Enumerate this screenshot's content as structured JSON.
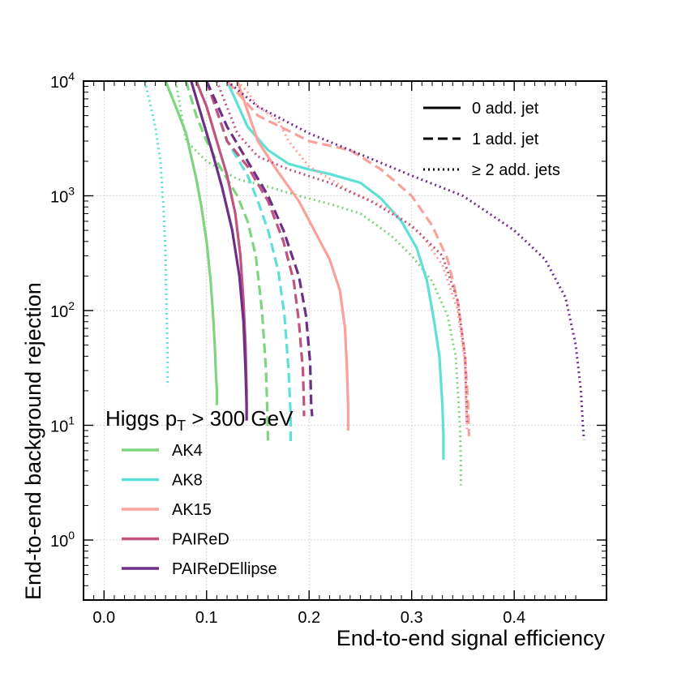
{
  "chart_data": {
    "type": "line",
    "xlabel": "End-to-end signal efficiency",
    "ylabel": "End-to-end background rejection",
    "xlim": [
      -0.02,
      0.49
    ],
    "ylim": [
      0.3,
      10000
    ],
    "yscale": "log",
    "grid": true,
    "x_ticks": [
      "0.0",
      "0.1",
      "0.2",
      "0.3",
      "0.4"
    ],
    "y_ticks": [
      {
        "base": "10",
        "exp": "0",
        "value": 1
      },
      {
        "base": "10",
        "exp": "1",
        "value": 10
      },
      {
        "base": "10",
        "exp": "2",
        "value": 100
      },
      {
        "base": "10",
        "exp": "3",
        "value": 1000
      },
      {
        "base": "10",
        "exp": "4",
        "value": 10000
      }
    ],
    "style_legend": {
      "placement": "top-right",
      "items": [
        {
          "label": "0 add. jet",
          "dash": "solid"
        },
        {
          "label": "1 add. jet",
          "dash": "dashed"
        },
        {
          "label": "≥ 2 add. jets",
          "dash": "dotted"
        }
      ]
    },
    "legend": {
      "placement": "bottom-left",
      "title_main": "Higgs p",
      "title_sub": "T",
      "title_rest": " > 300 GeV",
      "items": [
        {
          "label": "AK4",
          "color": "#7fd47f"
        },
        {
          "label": "AK8",
          "color": "#5fe0d6"
        },
        {
          "label": "AK15",
          "color": "#f9a19a"
        },
        {
          "label": "PAIReD",
          "color": "#c0547e"
        },
        {
          "label": "PAIReDEllipse",
          "color": "#6d2f88"
        }
      ]
    },
    "series": [
      {
        "name": "AK4",
        "njet": "0 add. jet",
        "color": "#7fd47f",
        "dash": "solid",
        "x": [
          0.06,
          0.07,
          0.08,
          0.085,
          0.09,
          0.095,
          0.1,
          0.104,
          0.106,
          0.108,
          0.109,
          0.11,
          0.11
        ],
        "y": [
          10000,
          6000,
          3500,
          2200,
          1400,
          800,
          400,
          180,
          100,
          50,
          30,
          20,
          15
        ]
      },
      {
        "name": "AK4",
        "njet": "1 add. jet",
        "color": "#7fd47f",
        "dash": "dashed",
        "x": [
          0.08,
          0.09,
          0.1,
          0.11,
          0.12,
          0.13,
          0.14,
          0.148,
          0.154,
          0.158,
          0.159,
          0.16
        ],
        "y": [
          10000,
          5000,
          3000,
          2000,
          1400,
          1000,
          600,
          300,
          100,
          30,
          15,
          7
        ]
      },
      {
        "name": "AK4",
        "njet": "≥ 2 add. jets",
        "color": "#7fd47f",
        "dash": "dotted",
        "x": [
          0.07,
          0.08,
          0.1,
          0.13,
          0.16,
          0.19,
          0.22,
          0.25,
          0.28,
          0.3,
          0.32,
          0.335,
          0.343,
          0.347,
          0.348,
          0.348
        ],
        "y": [
          10000,
          3000,
          2000,
          1400,
          1200,
          1000,
          850,
          700,
          450,
          300,
          180,
          90,
          40,
          10,
          5,
          3
        ]
      },
      {
        "name": "AK8",
        "njet": "0 add. jet",
        "color": "#5fe0d6",
        "dash": "solid",
        "x": [
          0.12,
          0.14,
          0.16,
          0.18,
          0.2,
          0.22,
          0.25,
          0.27,
          0.29,
          0.305,
          0.315,
          0.322,
          0.327,
          0.33,
          0.331,
          0.331
        ],
        "y": [
          10000,
          4000,
          2500,
          1900,
          1700,
          1550,
          1300,
          950,
          600,
          350,
          180,
          80,
          40,
          15,
          8,
          5
        ]
      },
      {
        "name": "AK8",
        "njet": "1 add. jet",
        "color": "#5fe0d6",
        "dash": "dashed",
        "x": [
          0.1,
          0.12,
          0.14,
          0.15,
          0.16,
          0.17,
          0.176,
          0.18,
          0.182,
          0.182
        ],
        "y": [
          10000,
          3000,
          1500,
          900,
          500,
          220,
          90,
          30,
          12,
          7
        ]
      },
      {
        "name": "AK8",
        "njet": "≥ 2 add. jets",
        "color": "#5fe0d6",
        "dash": "dotted",
        "x": [
          0.04,
          0.05,
          0.055,
          0.058,
          0.06,
          0.061,
          0.062,
          0.062
        ],
        "y": [
          10000,
          4000,
          2000,
          800,
          300,
          100,
          40,
          22
        ]
      },
      {
        "name": "AK15",
        "njet": "0 add. jet",
        "color": "#f9a19a",
        "dash": "solid",
        "x": [
          0.13,
          0.15,
          0.17,
          0.19,
          0.205,
          0.22,
          0.23,
          0.235,
          0.237,
          0.238,
          0.238
        ],
        "y": [
          10000,
          3000,
          1600,
          900,
          500,
          280,
          150,
          70,
          30,
          15,
          9
        ]
      },
      {
        "name": "AK15",
        "njet": "1 add. jet",
        "color": "#f9a19a",
        "dash": "dashed",
        "x": [
          0.12,
          0.15,
          0.2,
          0.24,
          0.27,
          0.3,
          0.32,
          0.335,
          0.345,
          0.352,
          0.355,
          0.356
        ],
        "y": [
          10000,
          5000,
          3000,
          2500,
          1700,
          1000,
          550,
          280,
          120,
          40,
          15,
          8
        ]
      },
      {
        "name": "AK15",
        "njet": "≥ 2 add. jets",
        "color": "#f9a19a",
        "dash": "dotted",
        "x": [
          0.13,
          0.14,
          0.15,
          0.17,
          0.18,
          0.2,
          0.24,
          0.28,
          0.31,
          0.33,
          0.345,
          0.352,
          0.354
        ],
        "y": [
          10000,
          8000,
          6000,
          4500,
          3000,
          1800,
          1100,
          750,
          450,
          250,
          100,
          35,
          9
        ]
      },
      {
        "name": "PAIReD",
        "njet": "0 add. jet",
        "color": "#c0547e",
        "dash": "solid",
        "x": [
          0.09,
          0.1,
          0.11,
          0.12,
          0.128,
          0.133,
          0.136,
          0.138,
          0.139,
          0.139
        ],
        "y": [
          10000,
          6000,
          3000,
          1500,
          700,
          300,
          120,
          50,
          20,
          12
        ]
      },
      {
        "name": "PAIReD",
        "njet": "1 add. jet",
        "color": "#c0547e",
        "dash": "dashed",
        "x": [
          0.1,
          0.12,
          0.14,
          0.16,
          0.175,
          0.185,
          0.19,
          0.194,
          0.195,
          0.195
        ],
        "y": [
          10000,
          3000,
          1800,
          900,
          400,
          180,
          80,
          30,
          15,
          12
        ]
      },
      {
        "name": "PAIReD",
        "njet": "≥ 2 add. jets",
        "color": "#c0547e",
        "dash": "dotted",
        "x": [
          0.11,
          0.13,
          0.15,
          0.18,
          0.22,
          0.26,
          0.3,
          0.33,
          0.345,
          0.352,
          0.354
        ],
        "y": [
          10000,
          3500,
          2200,
          1700,
          1300,
          900,
          550,
          300,
          120,
          40,
          10
        ]
      },
      {
        "name": "PAIReDEllipse",
        "njet": "0 add. jet",
        "color": "#6d2f88",
        "dash": "solid",
        "x": [
          0.085,
          0.095,
          0.105,
          0.115,
          0.125,
          0.132,
          0.136,
          0.138,
          0.139,
          0.139
        ],
        "y": [
          10000,
          5000,
          2500,
          1200,
          500,
          200,
          80,
          30,
          15,
          11
        ]
      },
      {
        "name": "PAIReDEllipse",
        "njet": "1 add. jet",
        "color": "#6d2f88",
        "dash": "dashed",
        "x": [
          0.1,
          0.12,
          0.14,
          0.16,
          0.175,
          0.19,
          0.197,
          0.201,
          0.202,
          0.203
        ],
        "y": [
          10000,
          4000,
          2000,
          1000,
          500,
          200,
          90,
          35,
          15,
          12
        ]
      },
      {
        "name": "PAIReDEllipse",
        "njet": "≥ 2 add. jets",
        "color": "#6d2f88",
        "dash": "dotted",
        "x": [
          0.12,
          0.15,
          0.2,
          0.25,
          0.3,
          0.35,
          0.4,
          0.43,
          0.45,
          0.46,
          0.465,
          0.467,
          0.468
        ],
        "y": [
          10000,
          6000,
          3500,
          2300,
          1500,
          1000,
          500,
          280,
          130,
          50,
          20,
          10,
          7.5
        ]
      }
    ]
  }
}
